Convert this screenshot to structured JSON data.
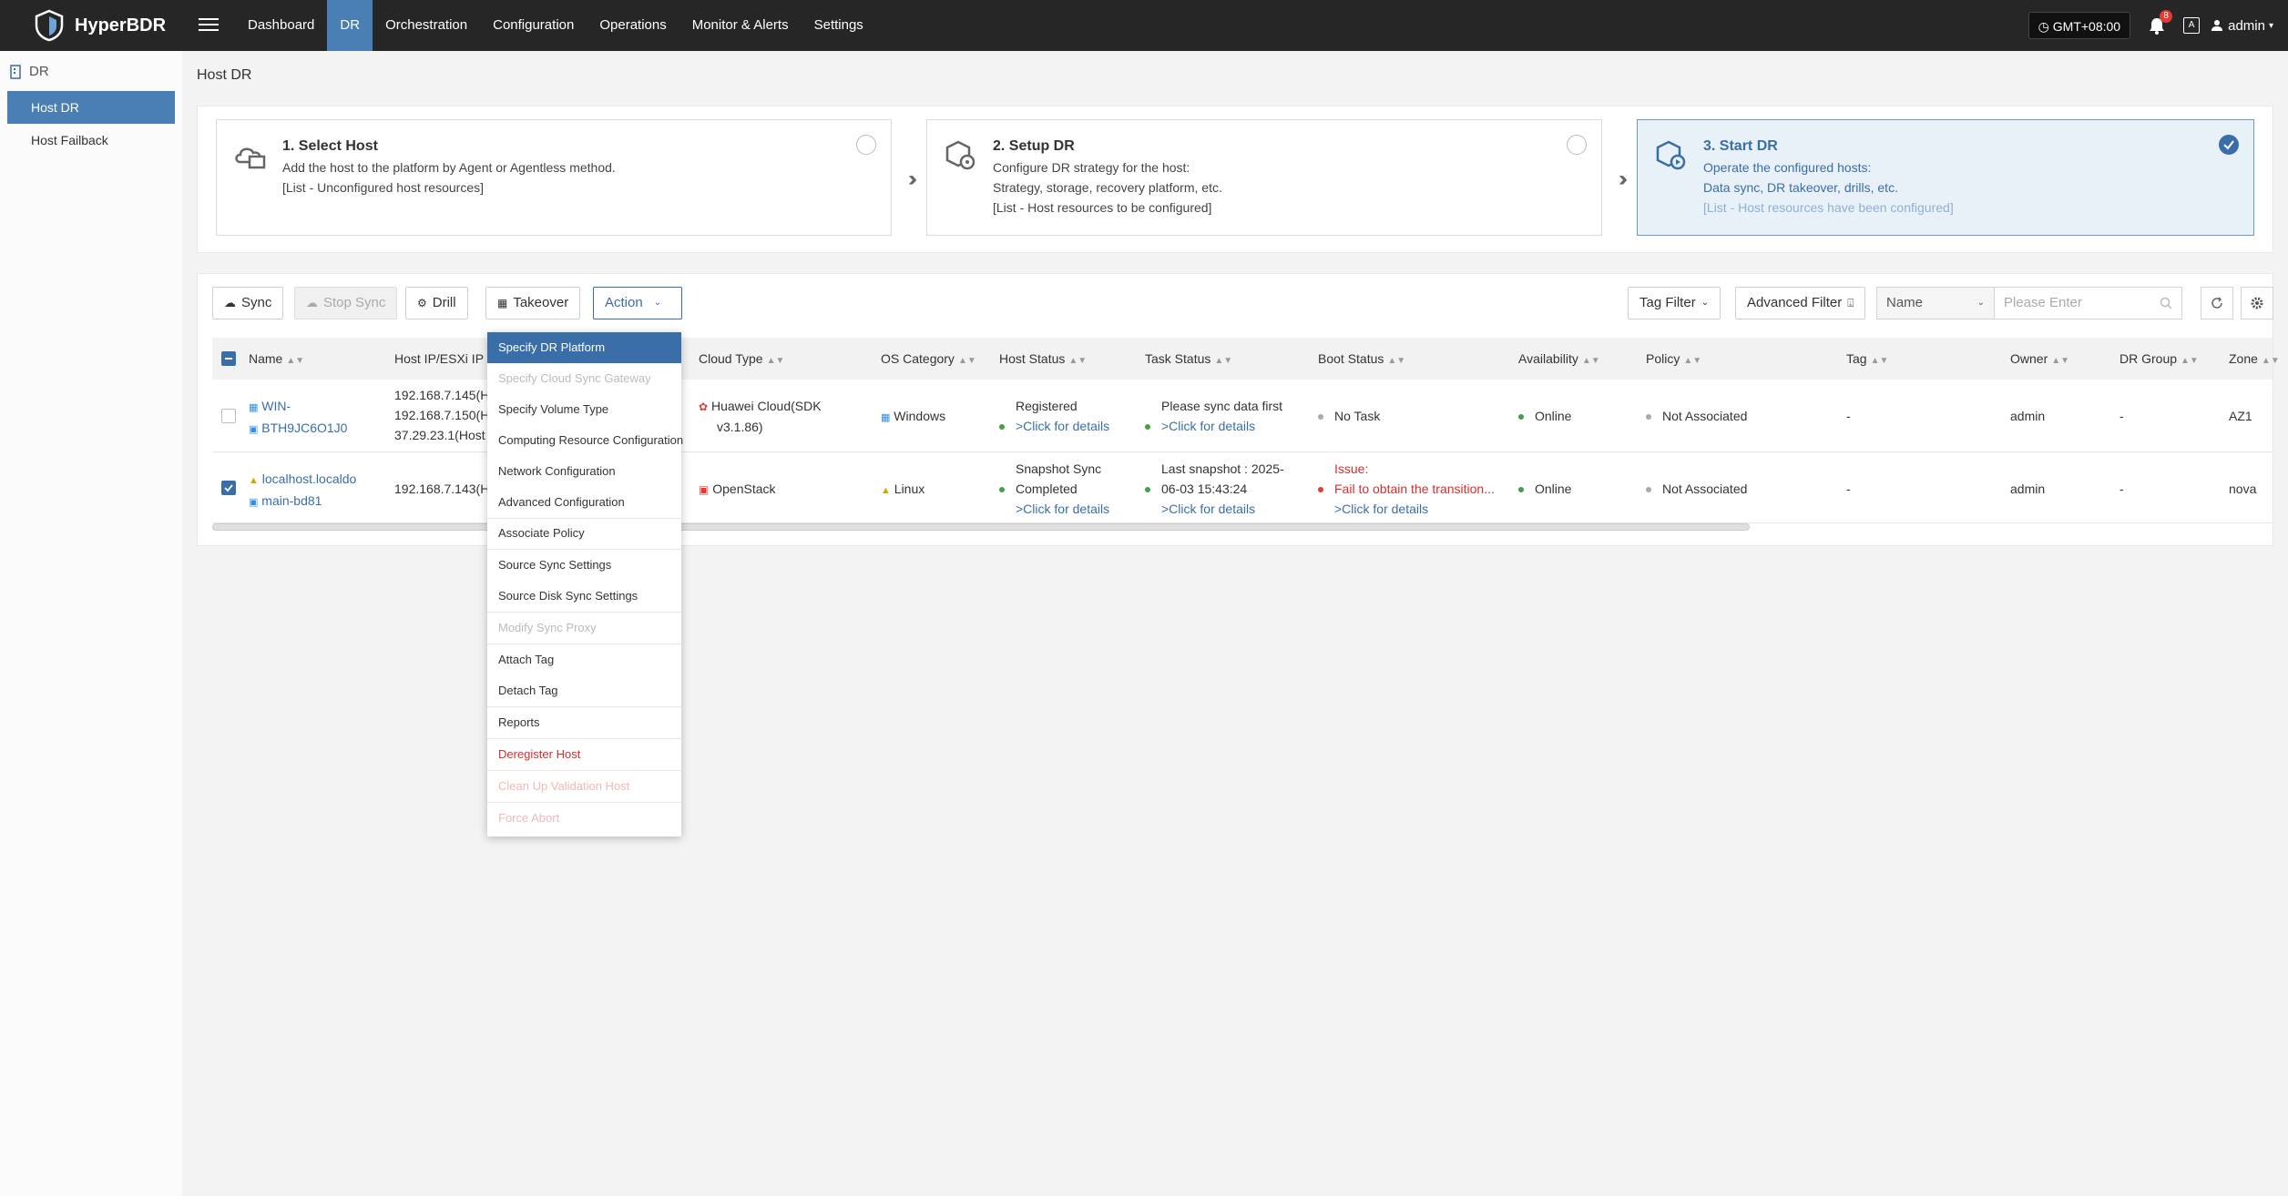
{
  "app": {
    "name": "HyperBDR"
  },
  "nav": [
    {
      "label": "Dashboard"
    },
    {
      "label": "DR",
      "active": true
    },
    {
      "label": "Orchestration"
    },
    {
      "label": "Configuration"
    },
    {
      "label": "Operations"
    },
    {
      "label": "Monitor & Alerts"
    },
    {
      "label": "Settings"
    }
  ],
  "topbar": {
    "timezone": "GMT+08:00",
    "alert_count": "8",
    "lang_icon": "A",
    "user": "admin"
  },
  "sidebar": {
    "group": "DR",
    "items": [
      {
        "label": "Host DR",
        "active": true
      },
      {
        "label": "Host Failback"
      }
    ]
  },
  "page": {
    "title": "Host DR"
  },
  "steps": [
    {
      "title": "1. Select Host",
      "lines": [
        "Add the host to the platform by Agent or Agentless method.",
        "[List - Unconfigured host resources]"
      ]
    },
    {
      "title": "2. Setup DR",
      "lines": [
        "Configure DR strategy for the host:",
        "Strategy, storage, recovery platform, etc.",
        "[List - Host resources to be configured]"
      ]
    },
    {
      "title": "3. Start DR",
      "lines": [
        "Operate the configured hosts:",
        "Data sync, DR takeover, drills, etc.",
        "[List - Host resources have been configured]"
      ],
      "active": true
    }
  ],
  "toolbar": {
    "sync": "Sync",
    "stop_sync": "Stop Sync",
    "drill": "Drill",
    "takeover": "Takeover",
    "action": "Action",
    "tag_filter": "Tag Filter",
    "advanced_filter": "Advanced Filter",
    "search_field": "Name",
    "search_placeholder": "Please Enter"
  },
  "table": {
    "columns": [
      "Name",
      "Host IP/ESXi IP",
      "Cloud Type",
      "OS Category",
      "Host Status",
      "Task Status",
      "Boot Status",
      "Availability",
      "Policy",
      "Tag",
      "Owner",
      "DR Group",
      "Zone"
    ],
    "rows": [
      {
        "name": [
          "WIN-",
          "BTH9JC6O1J0"
        ],
        "ip": [
          "192.168.7.145(H",
          "192.168.7.150(H",
          "37.29.23.1(Host"
        ],
        "cloud_type": [
          "Huawei Cloud(SDK",
          "v3.1.86)"
        ],
        "os": "Windows",
        "host_status": [
          "Registered",
          ">Click for details"
        ],
        "task_status": [
          "Please sync data first",
          ">Click for details"
        ],
        "boot_status": [
          "No Task"
        ],
        "availability": "Online",
        "policy": "Not Associated",
        "tag": "-",
        "owner": "admin",
        "dr_group": "-",
        "zone": "AZ1"
      },
      {
        "name": [
          "localhost.localdo",
          "main-bd81"
        ],
        "ip": [
          "192.168.7.143(H"
        ],
        "cloud_type": [
          "OpenStack"
        ],
        "os": "Linux",
        "host_status": [
          "Snapshot Sync",
          "Completed",
          ">Click for details"
        ],
        "task_status": [
          "Last snapshot : 2025-",
          "06-03 15:43:24",
          ">Click for details"
        ],
        "boot_status": [
          "Issue:",
          "Fail to obtain the transition...",
          ">Click for details"
        ],
        "availability": "Online",
        "policy": "Not Associated",
        "tag": "-",
        "owner": "admin",
        "dr_group": "-",
        "zone": "nova"
      }
    ]
  },
  "action_menu": [
    "Specify DR Platform",
    "Specify Cloud Sync Gateway",
    "Specify Volume Type",
    "Computing Resource Configuration",
    "Network Configuration",
    "Advanced Configuration",
    "Associate Policy",
    "Source Sync Settings",
    "Source Disk Sync Settings",
    "Modify Sync Proxy",
    "Attach Tag",
    "Detach Tag",
    "Reports",
    "Deregister Host",
    "Clean Up Validation Host",
    "Force Abort"
  ],
  "colors": {
    "topbar": "#262626",
    "accent": "#4a7fb5",
    "link": "#3a6ea8",
    "danger": "#d32f2f",
    "success": "#43a047"
  }
}
